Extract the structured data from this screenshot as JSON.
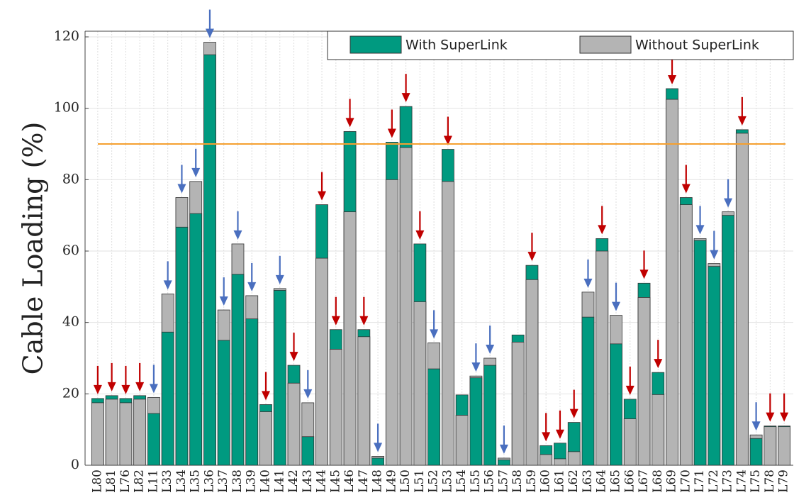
{
  "chart_data": {
    "type": "bar",
    "y_label": "Cable Loading (%)",
    "categories": [
      "L80",
      "L81",
      "L76",
      "L82",
      "L11",
      "L33",
      "L34",
      "L35",
      "L36",
      "L37",
      "L38",
      "L39",
      "L40",
      "L41",
      "L42",
      "L43",
      "L44",
      "L45",
      "L46",
      "L47",
      "L48",
      "L49",
      "L50",
      "L51",
      "L52",
      "L53",
      "L54",
      "L55",
      "L56",
      "L57",
      "L58",
      "L59",
      "L60",
      "L61",
      "L62",
      "L63",
      "L64",
      "L65",
      "L66",
      "L67",
      "L68",
      "L69",
      "L70",
      "L71",
      "L72",
      "L73",
      "L74",
      "L75",
      "L78",
      "L79"
    ],
    "series": [
      {
        "name": "With SuperLink",
        "color": "#009a80",
        "values": [
          18.7,
          19.5,
          18.7,
          19.5,
          14.5,
          37.3,
          66.7,
          70.5,
          115,
          35,
          53.5,
          41,
          17,
          49,
          28,
          8,
          73,
          38,
          93.5,
          38,
          2,
          90.5,
          100.5,
          62,
          27,
          88.5,
          19.7,
          24.5,
          28,
          1.5,
          36.5,
          56,
          5.5,
          6.2,
          12,
          41.5,
          63.5,
          34,
          18.5,
          51,
          26,
          105.5,
          75,
          63,
          55.7,
          70,
          94,
          7.5,
          11,
          11
        ]
      },
      {
        "name": "Without SuperLink",
        "color": "#b4b4b4",
        "values": [
          17.5,
          18.5,
          17.5,
          18.5,
          19,
          48,
          75,
          79.5,
          118.5,
          43.5,
          62,
          47.5,
          15,
          49.5,
          23,
          17.5,
          58,
          32.5,
          71,
          36,
          2.5,
          80,
          89,
          45.8,
          34.3,
          79.5,
          14,
          25,
          30,
          2,
          34.5,
          52,
          3,
          1.8,
          3.8,
          48.5,
          60,
          42,
          13,
          47,
          19.8,
          102.5,
          73,
          63.5,
          56.5,
          71,
          93,
          8.5,
          10.8,
          10.8
        ]
      }
    ],
    "arrows": [
      "increase",
      "increase",
      "increase",
      "increase",
      "decrease",
      "decrease",
      "decrease",
      "decrease",
      "decrease",
      "decrease",
      "decrease",
      "decrease",
      "increase",
      "decrease",
      "increase",
      "decrease",
      "increase",
      "increase",
      "increase",
      "increase",
      "decrease",
      "increase",
      "increase",
      "increase",
      "decrease",
      "increase",
      null,
      "decrease",
      "decrease",
      "decrease",
      null,
      "increase",
      "increase",
      "increase",
      "increase",
      "decrease",
      "increase",
      "decrease",
      "increase",
      "increase",
      "increase",
      "increase",
      "increase",
      "decrease",
      "decrease",
      "decrease",
      "increase",
      "decrease",
      "increase",
      "increase"
    ],
    "arrow_colors": {
      "increase": "#c00000",
      "decrease": "#4a6fbf"
    },
    "threshold": 90,
    "threshold_color": "#f5a030",
    "ylim": [
      0,
      120
    ],
    "yticks": [
      0,
      20,
      40,
      60,
      80,
      100,
      120
    ],
    "grid": true
  }
}
